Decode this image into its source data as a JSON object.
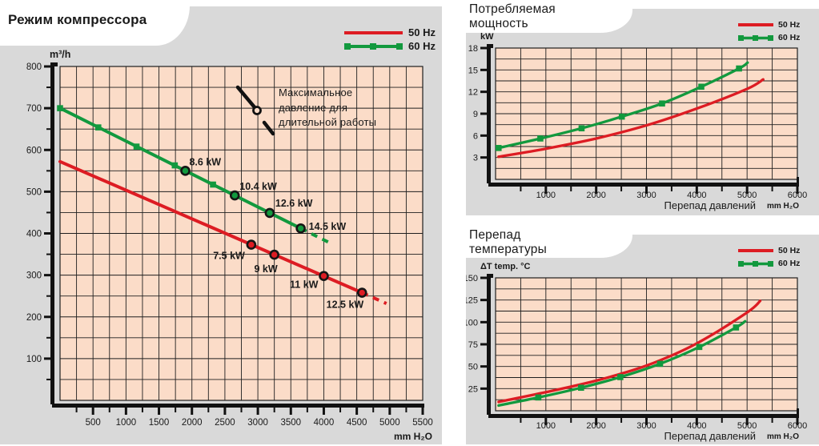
{
  "colors": {
    "red_50hz": "#dd1c23",
    "green_60hz": "#12993e",
    "marker_ring": "#151515",
    "panel_bg": "#d9d9d9",
    "plot_bg": "#fbdcc8",
    "grid": "#1f1f1f",
    "text": "#1a1a1a"
  },
  "legend": {
    "hz50": "50 Hz",
    "hz60": "60 Hz"
  },
  "panels": {
    "compressor": {
      "title": "Режим компрессора"
    },
    "power": {
      "title_line1": "Потребляемая",
      "title_line2": "мощность"
    },
    "temp": {
      "title_line1": "Перепад",
      "title_line2": "температуры"
    }
  },
  "annotation": {
    "line1": "Максимальное",
    "line2": "давление для",
    "line3": "длительной работы"
  },
  "chart_data": [
    {
      "id": "compressor",
      "type": "line",
      "title": "Режим компрессора",
      "ylabel": "m³/h",
      "xlabel": "mm H₂O",
      "x_title": "",
      "xlim": [
        0,
        5500
      ],
      "ylim": [
        0,
        800
      ],
      "x_ticks": {
        "start": 500,
        "step": 500,
        "minor": 250,
        "grid": 250
      },
      "y_ticks": {
        "start": 100,
        "step": 100,
        "minor": 50,
        "grid": 50
      },
      "legend_position": "top-right",
      "grid_on": true,
      "series": [
        {
          "name": "50 Hz",
          "color": "red_50hz",
          "solid": [
            [
              0,
              572
            ],
            [
              4580,
              258
            ]
          ],
          "dashed": [
            [
              4580,
              258
            ],
            [
              4950,
              232
            ]
          ],
          "power_points": [
            {
              "x": 2900,
              "y": 373,
              "label": "7.5 kW",
              "anchor": "end",
              "dx": -8,
              "dy": 18
            },
            {
              "x": 3250,
              "y": 349,
              "label": "9 kW",
              "anchor": "end",
              "dx": 4,
              "dy": 22
            },
            {
              "x": 4000,
              "y": 298,
              "label": "11 kW",
              "anchor": "end",
              "dx": -7,
              "dy": 15
            },
            {
              "x": 4580,
              "y": 258,
              "label": "12.5 kW",
              "anchor": "end",
              "dx": 2,
              "dy": 19
            }
          ]
        },
        {
          "name": "60 Hz",
          "color": "green_60hz",
          "solid": [
            [
              0,
              700
            ],
            [
              3650,
              412
            ]
          ],
          "dashed": [
            [
              3650,
              412
            ],
            [
              4120,
              375
            ]
          ],
          "squares": [
            [
              0,
              700
            ],
            [
              580,
              654
            ],
            [
              1160,
              608
            ],
            [
              1740,
              563
            ],
            [
              2320,
              517
            ]
          ],
          "power_points": [
            {
              "x": 1900,
              "y": 550,
              "label": "8.6 kW",
              "anchor": "start",
              "dx": 5,
              "dy": -7
            },
            {
              "x": 2650,
              "y": 491,
              "label": "10.4 kW",
              "anchor": "start",
              "dx": 6,
              "dy": -7
            },
            {
              "x": 3180,
              "y": 449,
              "label": "12.6 kW",
              "anchor": "start",
              "dx": 7,
              "dy": -8
            },
            {
              "x": 3650,
              "y": 412,
              "label": "14.5 kW",
              "anchor": "start",
              "dx": 10,
              "dy": 2
            }
          ]
        }
      ]
    },
    {
      "id": "power",
      "type": "line",
      "title": "Потребляемая мощность",
      "ylabel": "kW",
      "xlabel": "mm H₂O",
      "x_title": "Перепад давлений",
      "xlim": [
        0,
        6000
      ],
      "ylim": [
        0,
        18
      ],
      "x_ticks": {
        "start": 1000,
        "step": 1000,
        "minor": 500,
        "grid": 500
      },
      "y_ticks": {
        "start": 3,
        "step": 3,
        "minor": null,
        "grid": 1.5
      },
      "legend_position": "top-right",
      "grid_on": true,
      "series": [
        {
          "name": "50 Hz",
          "color": "red_50hz",
          "points": [
            [
              60,
              3.1
            ],
            [
              1000,
              4.2
            ],
            [
              2000,
              5.6
            ],
            [
              3000,
              7.4
            ],
            [
              4000,
              9.7
            ],
            [
              5000,
              12.4
            ],
            [
              5320,
              13.7
            ]
          ]
        },
        {
          "name": "60 Hz",
          "color": "green_60hz",
          "points": [
            [
              60,
              4.3
            ],
            [
              890,
              5.6
            ],
            [
              1710,
              7.0
            ],
            [
              2510,
              8.6
            ],
            [
              3310,
              10.4
            ],
            [
              4090,
              12.7
            ],
            [
              4840,
              15.2
            ],
            [
              5010,
              16.0
            ]
          ],
          "squares_idx": [
            0,
            1,
            2,
            3,
            4,
            5,
            6
          ]
        }
      ]
    },
    {
      "id": "temp",
      "type": "line",
      "title": "Перепад температуры",
      "ylabel": "ΔT temp. °C",
      "xlabel": "mm H₂O",
      "x_title": "Перепад давлений",
      "xlim": [
        0,
        6000
      ],
      "ylim": [
        0,
        150
      ],
      "x_ticks": {
        "start": 1000,
        "step": 1000,
        "minor": 500,
        "grid": 500
      },
      "y_ticks": {
        "start": 25,
        "step": 25,
        "minor": null,
        "grid": 12.5
      },
      "legend_position": "top-right",
      "grid_on": true,
      "series": [
        {
          "name": "50 Hz",
          "color": "red_50hz",
          "points": [
            [
              60,
              10
            ],
            [
              1000,
              21
            ],
            [
              2000,
              34
            ],
            [
              3000,
              51
            ],
            [
              4000,
              76
            ],
            [
              5000,
              111
            ],
            [
              5260,
              124
            ]
          ]
        },
        {
          "name": "60 Hz",
          "color": "green_60hz",
          "points": [
            [
              60,
              6
            ],
            [
              850,
              15
            ],
            [
              1700,
              26
            ],
            [
              2480,
              38
            ],
            [
              3270,
              53
            ],
            [
              4050,
              72
            ],
            [
              4780,
              94
            ],
            [
              4960,
              101
            ]
          ],
          "squares_idx": [
            1,
            2,
            3,
            4,
            5,
            6
          ]
        }
      ]
    }
  ]
}
